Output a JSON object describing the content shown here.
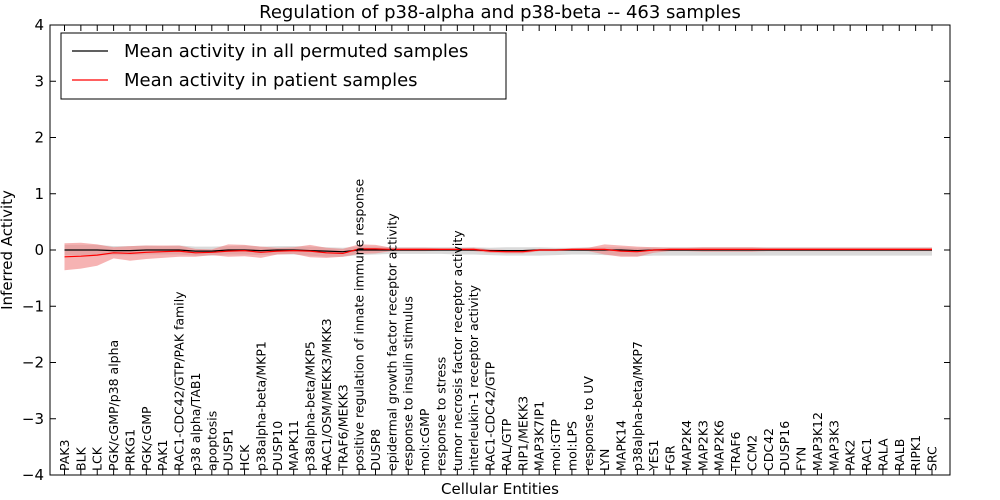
{
  "chart_data": {
    "type": "line",
    "title": "Regulation of p38-alpha and p38-beta -- 463 samples",
    "xlabel": "Cellular Entities",
    "ylabel": "Inferred Activity",
    "ylim": [
      -4,
      4
    ],
    "yticks": [
      -4,
      -3,
      -2,
      -1,
      0,
      1,
      2,
      3,
      4
    ],
    "ytick_labels": [
      "−4",
      "−3",
      "−2",
      "−1",
      "0",
      "1",
      "2",
      "3",
      "4"
    ],
    "grid": false,
    "legend_position": "top-left",
    "categories": [
      "PAK3",
      "BLK",
      "LCK",
      "PGK/cGMP/p38 alpha",
      "PRKG1",
      "PGK/cGMP",
      "PAK1",
      "RAC1-CDC42/GTP/PAK family",
      "p38 alpha/TAB1",
      "apoptosis",
      "DUSP1",
      "HCK",
      "p38alpha-beta/MKP1",
      "DUSP10",
      "MAPK11",
      "p38alpha-beta/MKP5",
      "RAC1/OSM/MEKK3/MKK3",
      "TRAF6/MEKK3",
      "positive regulation of innate immune response",
      "DUSP8",
      "epidermal growth factor receptor activity",
      "response to insulin stimulus",
      "mol:cGMP",
      "response to stress",
      "tumor necrosis factor receptor activity",
      "interleukin-1 receptor activity",
      "RAC1-CDC42/GTP",
      "RAL/GTP",
      "RIP1/MEKK3",
      "MAP3K7IP1",
      "mol:GTP",
      "mol:LPS",
      "response to UV",
      "LYN",
      "MAPK14",
      "p38alpha-beta/MKP7",
      "YES1",
      "FGR",
      "MAP2K4",
      "MAP2K3",
      "MAP2K6",
      "TRAF6",
      "CCM2",
      "CDC42",
      "DUSP16",
      "FYN",
      "MAP3K12",
      "MAP3K3",
      "PAK2",
      "RAC1",
      "RALA",
      "RALB",
      "RIPK1",
      "SRC"
    ],
    "series": [
      {
        "name": "Mean activity in all permuted samples",
        "color": "#000000",
        "band_color": "#bbbbbb",
        "values": [
          0,
          0,
          0,
          -0.01,
          -0.01,
          0,
          0,
          0,
          -0.02,
          -0.02,
          0,
          0,
          -0.01,
          0,
          0,
          -0.01,
          -0.02,
          -0.03,
          0,
          0,
          0,
          0,
          0,
          0,
          0,
          0,
          -0.01,
          -0.01,
          -0.01,
          0,
          0,
          0,
          0,
          0,
          0,
          -0.01,
          0,
          0,
          0,
          0,
          0,
          0,
          0,
          0,
          0,
          0,
          0,
          0,
          0,
          0,
          0,
          0,
          0,
          0
        ],
        "band_upper": [
          0.09,
          0.09,
          0.09,
          0.07,
          0.07,
          0.08,
          0.07,
          0.08,
          0.06,
          0.06,
          0.07,
          0.08,
          0.06,
          0.07,
          0.07,
          0.06,
          0.05,
          0.04,
          0.06,
          0.06,
          0.05,
          0.05,
          0.05,
          0.05,
          0.05,
          0.05,
          0.04,
          0.05,
          0.05,
          0.05,
          0.04,
          0.04,
          0.05,
          0.05,
          0.05,
          0.04,
          0.05,
          0.05,
          0.05,
          0.05,
          0.05,
          0.05,
          0.05,
          0.05,
          0.05,
          0.05,
          0.05,
          0.05,
          0.05,
          0.05,
          0.05,
          0.05,
          0.05,
          0.05
        ],
        "band_lower": [
          -0.09,
          -0.09,
          -0.09,
          -0.09,
          -0.09,
          -0.08,
          -0.08,
          -0.08,
          -0.1,
          -0.1,
          -0.08,
          -0.08,
          -0.09,
          -0.08,
          -0.08,
          -0.1,
          -0.12,
          -0.12,
          -0.09,
          -0.08,
          -0.07,
          -0.07,
          -0.07,
          -0.07,
          -0.08,
          -0.08,
          -0.09,
          -0.1,
          -0.1,
          -0.1,
          -0.09,
          -0.08,
          -0.08,
          -0.09,
          -0.1,
          -0.11,
          -0.1,
          -0.1,
          -0.1,
          -0.1,
          -0.1,
          -0.1,
          -0.1,
          -0.1,
          -0.1,
          -0.1,
          -0.1,
          -0.1,
          -0.1,
          -0.1,
          -0.1,
          -0.1,
          -0.1,
          -0.1
        ]
      },
      {
        "name": "Mean activity in patient samples",
        "color": "#ff0000",
        "band_color": "#f08080",
        "values": [
          -0.12,
          -0.11,
          -0.09,
          -0.05,
          -0.06,
          -0.04,
          -0.03,
          -0.02,
          -0.05,
          -0.04,
          -0.02,
          -0.01,
          -0.04,
          -0.02,
          -0.01,
          -0.02,
          -0.05,
          -0.06,
          0.02,
          0.02,
          0.01,
          0.01,
          0.01,
          0.01,
          0.01,
          0.01,
          -0.02,
          -0.03,
          -0.03,
          0,
          0,
          0.01,
          0.01,
          0.01,
          -0.02,
          -0.03,
          0,
          0.01,
          0.01,
          0.01,
          0.01,
          0.01,
          0.01,
          0.01,
          0.01,
          0.01,
          0.01,
          0.01,
          0.01,
          0.01,
          0.01,
          0.01,
          0.01,
          0.01
        ],
        "band_upper": [
          0.12,
          0.13,
          0.1,
          0.05,
          0.07,
          0.08,
          0.08,
          0.08,
          0.02,
          0.01,
          0.1,
          0.09,
          0.06,
          0.04,
          0.05,
          0.09,
          0.04,
          0.02,
          0.1,
          0.09,
          0.04,
          0.04,
          0.04,
          0.03,
          0.03,
          0.04,
          0.01,
          0.0,
          0.0,
          0.02,
          0.02,
          0.03,
          0.04,
          0.1,
          0.08,
          0.06,
          0.05,
          0.04,
          0.04,
          0.05,
          0.05,
          0.05,
          0.05,
          0.04,
          0.04,
          0.04,
          0.04,
          0.04,
          0.04,
          0.04,
          0.04,
          0.04,
          0.04,
          0.04
        ],
        "band_lower": [
          -0.36,
          -0.33,
          -0.28,
          -0.15,
          -0.19,
          -0.16,
          -0.14,
          -0.12,
          -0.12,
          -0.09,
          -0.12,
          -0.11,
          -0.14,
          -0.08,
          -0.07,
          -0.13,
          -0.14,
          -0.12,
          -0.07,
          -0.06,
          -0.02,
          -0.02,
          -0.02,
          -0.01,
          -0.01,
          -0.02,
          -0.05,
          -0.06,
          -0.06,
          -0.02,
          -0.02,
          -0.01,
          -0.02,
          -0.08,
          -0.12,
          -0.12,
          -0.05,
          -0.02,
          -0.02,
          -0.03,
          -0.03,
          -0.03,
          -0.03,
          -0.02,
          -0.02,
          -0.02,
          -0.02,
          -0.02,
          -0.02,
          -0.02,
          -0.02,
          -0.02,
          -0.02,
          -0.02
        ]
      }
    ]
  }
}
